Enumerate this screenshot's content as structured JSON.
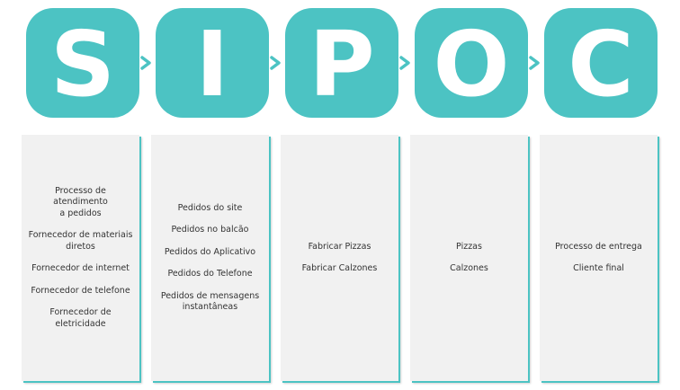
{
  "steps": [
    {
      "letter": "S",
      "items": [
        "Processo de\natendimento\na pedidos",
        "Fornecedor de materiais\ndiretos",
        "Fornecedor de internet",
        "Fornecedor de telefone",
        "Fornecedor de\neletricidade"
      ]
    },
    {
      "letter": "I",
      "items": [
        "Pedidos do site",
        "Pedidos no balcão",
        "Pedidos do Aplicativo",
        "Pedidos do Telefone",
        "Pedidos de mensagens\ninstantâneas"
      ]
    },
    {
      "letter": "P",
      "items": [
        "Fabricar Pizzas",
        "Fabricar Calzones"
      ]
    },
    {
      "letter": "O",
      "items": [
        "Pizzas",
        "Calzones"
      ]
    },
    {
      "letter": "C",
      "items": [
        "Processo de entrega",
        "Cliente final"
      ]
    }
  ],
  "colors": {
    "accent": "#4cc3c3",
    "card": "#f1f1f1",
    "text": "#333333"
  }
}
